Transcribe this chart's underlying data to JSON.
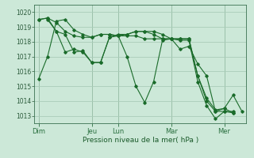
{
  "background_color": "#cce8d8",
  "grid_color": "#aaccb8",
  "line_color": "#1a6b2a",
  "xlabel": "Pression niveau de la mer( hPa )",
  "ylim": [
    1012.5,
    1020.5
  ],
  "yticks": [
    1013,
    1014,
    1015,
    1016,
    1017,
    1018,
    1019,
    1020
  ],
  "day_labels": [
    "Dim",
    "Jeu",
    "Lun",
    "Mar",
    "Mer"
  ],
  "day_positions": [
    0,
    12,
    18,
    30,
    42
  ],
  "xlim": [
    -1,
    47
  ],
  "series": [
    {
      "x": [
        0,
        2,
        4,
        6,
        8,
        10,
        12,
        14,
        16,
        18,
        20,
        22,
        24,
        26,
        28,
        30,
        32,
        34,
        36,
        38,
        40,
        42,
        44,
        46
      ],
      "y": [
        1015.5,
        1017.0,
        1019.4,
        1019.5,
        1018.8,
        1018.5,
        1018.3,
        1018.5,
        1018.5,
        1018.4,
        1017.0,
        1015.0,
        1013.9,
        1015.3,
        1018.1,
        1018.2,
        1017.5,
        1017.7,
        1016.5,
        1015.7,
        1013.3,
        1013.5,
        1014.4,
        1013.3
      ]
    },
    {
      "x": [
        0,
        2,
        4,
        6,
        8,
        10,
        12,
        14,
        16,
        18,
        20,
        22,
        24,
        26,
        28,
        30,
        32,
        34,
        36,
        38,
        40,
        42,
        44
      ],
      "y": [
        1019.5,
        1019.6,
        1019.3,
        1018.7,
        1018.4,
        1018.3,
        1018.3,
        1018.5,
        1018.5,
        1018.4,
        1018.4,
        1018.4,
        1018.2,
        1018.2,
        1018.2,
        1018.2,
        1018.1,
        1018.1,
        1015.3,
        1013.7,
        1012.8,
        1013.3,
        1013.3
      ]
    },
    {
      "x": [
        0,
        2,
        4,
        6,
        8,
        10,
        12,
        14,
        16,
        18,
        20,
        22,
        24,
        26,
        28,
        30,
        32,
        34,
        36,
        38,
        40,
        42,
        44
      ],
      "y": [
        1019.5,
        1019.6,
        1018.7,
        1018.5,
        1017.3,
        1017.4,
        1016.6,
        1016.6,
        1018.3,
        1018.4,
        1018.5,
        1018.7,
        1018.7,
        1018.7,
        1018.5,
        1018.2,
        1018.2,
        1018.2,
        1015.7,
        1014.0,
        1013.3,
        1013.3,
        1013.2
      ]
    },
    {
      "x": [
        2,
        4,
        6,
        8,
        10,
        12,
        14,
        16,
        18,
        20,
        22,
        24,
        26,
        28,
        30,
        32,
        34,
        36,
        38,
        40,
        42,
        44
      ],
      "y": [
        1019.5,
        1018.7,
        1017.3,
        1017.5,
        1017.3,
        1016.6,
        1016.6,
        1018.3,
        1018.5,
        1018.5,
        1018.7,
        1018.7,
        1018.5,
        1018.2,
        1018.2,
        1018.2,
        1018.2,
        1015.7,
        1014.2,
        1013.4,
        1013.5,
        1013.2
      ]
    }
  ]
}
